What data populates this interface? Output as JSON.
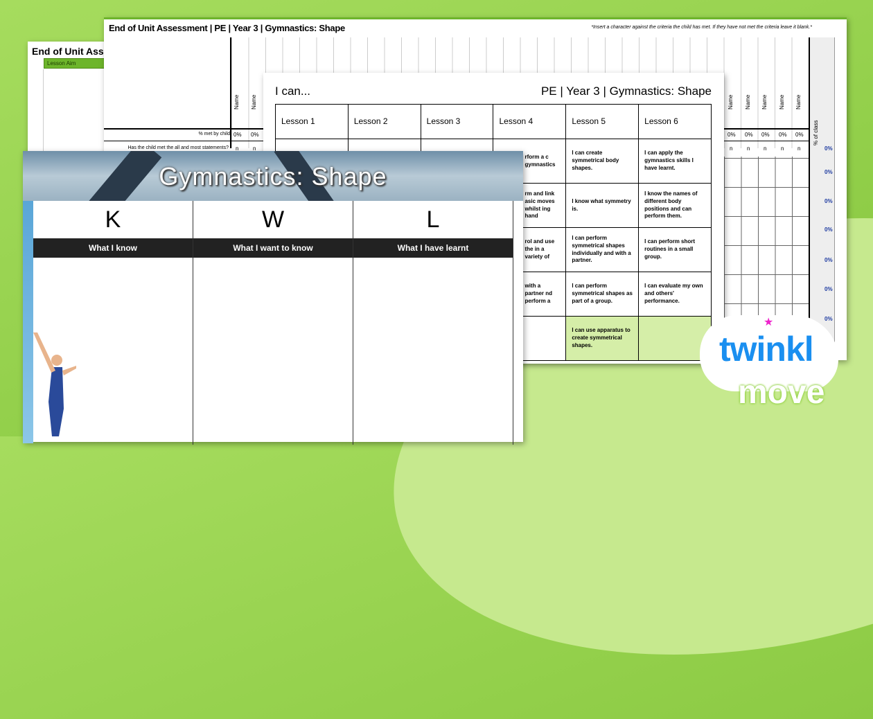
{
  "back_sheet": {
    "title": "End of Unit Asse",
    "lesson_aim": "Lesson Aim"
  },
  "assessment": {
    "title": "End of Unit Assessment | PE | Year 3 | Gymnastics: Shape",
    "note": "*Insert a character against the criteria the child has met. If they have not met the criteria leave it blank.*",
    "name_label": "Name",
    "pct_class_label": "% of class",
    "met_by_child_label": "% met by child",
    "met_all_label": "Has the child met the all and most statements?",
    "zero": "0%",
    "n": "n",
    "class_values": [
      "0%",
      "0%",
      "0%",
      "0%",
      "0%",
      "0%",
      "0%"
    ]
  },
  "ican": {
    "title": "I can...",
    "subject": "PE | Year 3 | Gymnastics: Shape",
    "lessons": [
      "Lesson 1",
      "Lesson 2",
      "Lesson 3",
      "Lesson 4",
      "Lesson 5",
      "Lesson 6"
    ],
    "lesson4": [
      "rform a c gymnastics",
      "rm and link asic moves whilst ing hand",
      "rol and use the in a variety of",
      "with a partner nd perform a",
      ""
    ],
    "lesson5": [
      "I can create symmetrical body shapes.",
      "I know what symmetry is.",
      "I can perform symmetrical shapes individually and with a partner.",
      "I can perform symmetrical shapes as part of a group.",
      "I can use apparatus to create symmetrical shapes."
    ],
    "lesson6": [
      "I can apply the gymnastics skills I have learnt.",
      "I know the names of different body positions and can perform them.",
      "I can perform short routines in a small group.",
      "I can evaluate my own and others' performance.",
      ""
    ]
  },
  "kwl": {
    "title": "Gymnastics: Shape",
    "columns": [
      {
        "letter": "K",
        "label": "What I know"
      },
      {
        "letter": "W",
        "label": "What I want to know"
      },
      {
        "letter": "L",
        "label": "What I have learnt"
      }
    ]
  },
  "logo": {
    "line1": "twinkl",
    "line2": "move"
  },
  "colors": {
    "background": "#9bd454",
    "accent": "#6db52b",
    "logo_blue": "#1a8ff0",
    "star": "#ee22cc"
  }
}
